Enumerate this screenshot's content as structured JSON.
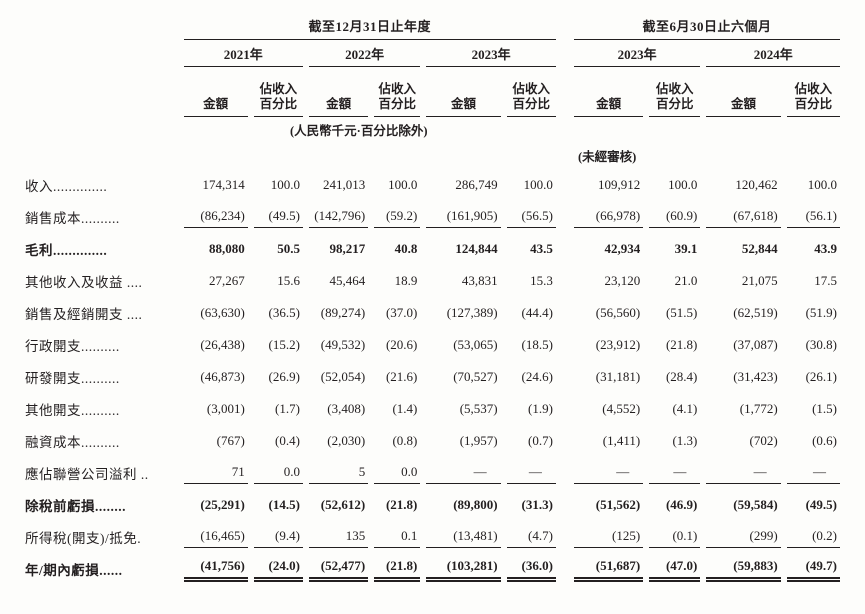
{
  "doc": {
    "unit_note": "(人民幣千元·百分比除外)",
    "unaudited_note": "(未經審核)",
    "groups": [
      {
        "title": "截至12月31日止年度",
        "years": [
          "2021年",
          "2022年",
          "2023年"
        ]
      },
      {
        "title": "截至6月30日止六個月",
        "years": [
          "2023年",
          "2024年"
        ]
      }
    ],
    "subheaders": {
      "amount": "金額",
      "pct_line1": "佔收入",
      "pct_line2": "百分比"
    },
    "rows": [
      {
        "label": "收入",
        "dots": "..............",
        "bold": false,
        "rule": "none",
        "values": [
          "174,314",
          "100.0",
          "241,013",
          "100.0",
          "286,749",
          "100.0",
          "109,912",
          "100.0",
          "120,462",
          "100.0"
        ]
      },
      {
        "label": "銷售成本",
        "dots": "..........",
        "bold": false,
        "rule": "single",
        "values": [
          "(86,234)",
          "(49.5)",
          "(142,796)",
          "(59.2)",
          "(161,905)",
          "(56.5)",
          "(66,978)",
          "(60.9)",
          "(67,618)",
          "(56.1)"
        ]
      },
      {
        "label": "毛利",
        "dots": "..............",
        "bold": true,
        "rule": "none",
        "values": [
          "88,080",
          "50.5",
          "98,217",
          "40.8",
          "124,844",
          "43.5",
          "42,934",
          "39.1",
          "52,844",
          "43.9"
        ]
      },
      {
        "label": "其他收入及收益 ",
        "dots": "....",
        "bold": false,
        "rule": "none",
        "values": [
          "27,267",
          "15.6",
          "45,464",
          "18.9",
          "43,831",
          "15.3",
          "23,120",
          "21.0",
          "21,075",
          "17.5"
        ]
      },
      {
        "label": "銷售及經銷開支 ",
        "dots": "....",
        "bold": false,
        "rule": "none",
        "values": [
          "(63,630)",
          "(36.5)",
          "(89,274)",
          "(37.0)",
          "(127,389)",
          "(44.4)",
          "(56,560)",
          "(51.5)",
          "(62,519)",
          "(51.9)"
        ]
      },
      {
        "label": "行政開支",
        "dots": "..........",
        "bold": false,
        "rule": "none",
        "values": [
          "(26,438)",
          "(15.2)",
          "(49,532)",
          "(20.6)",
          "(53,065)",
          "(18.5)",
          "(23,912)",
          "(21.8)",
          "(37,087)",
          "(30.8)"
        ]
      },
      {
        "label": "研發開支",
        "dots": "..........",
        "bold": false,
        "rule": "none",
        "values": [
          "(46,873)",
          "(26.9)",
          "(52,054)",
          "(21.6)",
          "(70,527)",
          "(24.6)",
          "(31,181)",
          "(28.4)",
          "(31,423)",
          "(26.1)"
        ]
      },
      {
        "label": "其他開支",
        "dots": "..........",
        "bold": false,
        "rule": "none",
        "values": [
          "(3,001)",
          "(1.7)",
          "(3,408)",
          "(1.4)",
          "(5,537)",
          "(1.9)",
          "(4,552)",
          "(4.1)",
          "(1,772)",
          "(1.5)"
        ]
      },
      {
        "label": "融資成本",
        "dots": "..........",
        "bold": false,
        "rule": "none",
        "values": [
          "(767)",
          "(0.4)",
          "(2,030)",
          "(0.8)",
          "(1,957)",
          "(0.7)",
          "(1,411)",
          "(1.3)",
          "(702)",
          "(0.6)"
        ]
      },
      {
        "label": "應佔聯營公司溢利 ",
        "dots": "..",
        "bold": false,
        "rule": "single",
        "values": [
          "71",
          "0.0",
          "5",
          "0.0",
          "—",
          "—",
          "—",
          "—",
          "—",
          "—"
        ]
      },
      {
        "label": "除稅前虧損",
        "dots": "........",
        "bold": true,
        "rule": "none",
        "values": [
          "(25,291)",
          "(14.5)",
          "(52,612)",
          "(21.8)",
          "(89,800)",
          "(31.3)",
          "(51,562)",
          "(46.9)",
          "(59,584)",
          "(49.5)"
        ]
      },
      {
        "label": "所得稅(開支)/抵免",
        "dots": ".",
        "bold": false,
        "rule": "single",
        "values": [
          "(16,465)",
          "(9.4)",
          "135",
          "0.1",
          "(13,481)",
          "(4.7)",
          "(125)",
          "(0.1)",
          "(299)",
          "(0.2)"
        ]
      },
      {
        "label": "年/期內虧損",
        "dots": "......",
        "bold": true,
        "rule": "double",
        "values": [
          "(41,756)",
          "(24.0)",
          "(52,477)",
          "(21.8)",
          "(103,281)",
          "(36.0)",
          "(51,687)",
          "(47.0)",
          "(59,883)",
          "(49.7)"
        ]
      }
    ]
  }
}
